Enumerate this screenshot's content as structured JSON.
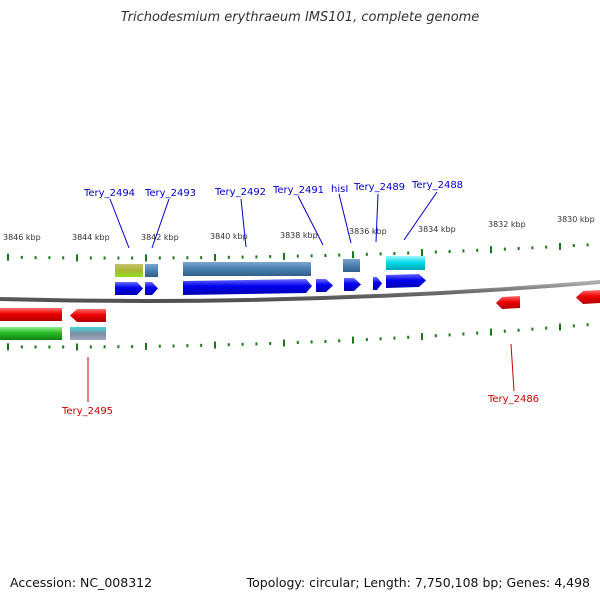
{
  "title": "Trichodesmium erythraeum IMS101, complete genome",
  "footer": {
    "accession": "Accession: NC_008312",
    "summary": "Topology: circular; Length: 7,750,108 bp; Genes: 4,498"
  },
  "colors": {
    "backbone": "#808080",
    "tick": "#1a7a1a",
    "forward_gene": "#0000ee",
    "reverse_gene": "#ee0000",
    "forward_label": "#0000cc",
    "reverse_label": "#cc0000",
    "feature_steelblue": "#4a7fb0",
    "feature_cyan": "#00d8e8",
    "feature_olive": "#a8b830",
    "feature_green": "#22b822",
    "feature_gray": "#7d8fa0"
  },
  "kbp_labels": [
    "3846 kbp",
    "3844 kbp",
    "3842 kbp",
    "3840 kbp",
    "3838 kbp",
    "3836 kbp",
    "3834 kbp",
    "3832 kbp",
    "3830 kbp"
  ],
  "forward_labels": [
    "Tery_2494",
    "Tery_2493",
    "Tery_2492",
    "Tery_2491",
    "hisI",
    "Tery_2489",
    "Tery_2488"
  ],
  "reverse_labels": [
    "Tery_2495",
    "Tery_2486"
  ]
}
